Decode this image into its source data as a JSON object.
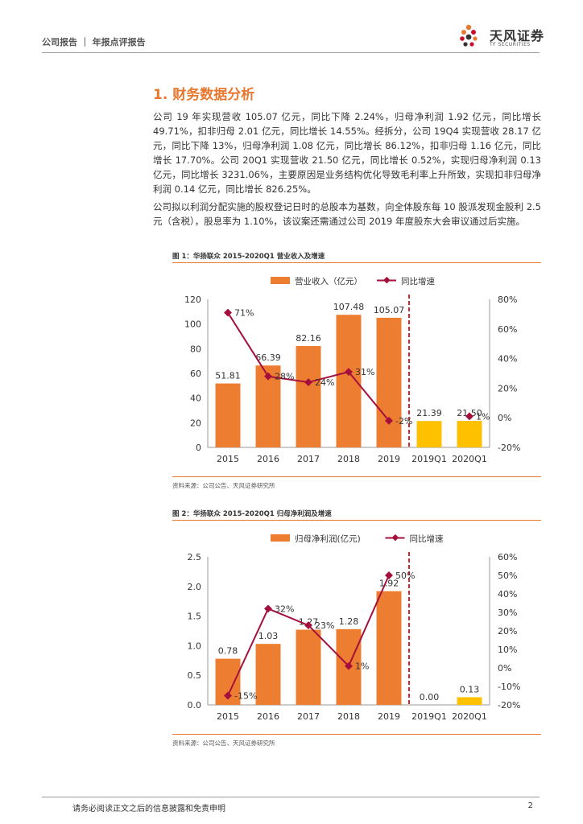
{
  "header": {
    "title": "公司报告 ｜ 年报点评报告"
  },
  "logo": {
    "name": "天风证券",
    "subtitle": "TF SECURITIES"
  },
  "section": {
    "title": "1. 财务数据分析"
  },
  "paragraphs": {
    "p1": "公司 19 年实现营收 105.07 亿元，同比下降 2.24%，归母净利润 1.92 亿元，同比增长 49.71%，扣非归母 2.01 亿元，同比增长 14.55%。经拆分，公司 19Q4 实现营收 28.17 亿元，同比下降 13%，归母净利润 1.08 亿元，同比增长 86.12%，扣非归母 1.16 亿元，同比增长 17.70%。公司 20Q1 实现营收 21.50 亿元，同比增长 0.52%，实现归母净利润 0.13 亿元，同比增长 3231.06%，主要原因是业务结构优化导致毛利率上升所致，实现扣非归母净利润 0.14 亿元，同比增长 826.25%。",
    "p2": "公司拟以利润分配实施的股权登记日时的总股本为基数，向全体股东每 10 股派发现金股利 2.5 元（含税），股息率为 1.10%，该议案还需通过公司 2019 年度股东大会审议通过后实施。"
  },
  "figures": {
    "fig1": {
      "title": "图 1：华扬联众 2015-2020Q1 营业收入及增速",
      "source": "资料来源：公司公告、天风证券研究所"
    },
    "fig2": {
      "title": "图 2：华扬联众 2015-2020Q1 归母净利润及增速",
      "source": "资料来源：公司公告、天风证券研究所"
    }
  },
  "chart_data": [
    {
      "type": "bar",
      "categories": [
        "2015",
        "2016",
        "2017",
        "2018",
        "2019",
        "2019Q1",
        "2020Q1"
      ],
      "series": [
        {
          "name": "营业收入（亿元）",
          "type": "bar",
          "values": [
            51.81,
            66.39,
            82.16,
            107.48,
            105.07,
            21.39,
            21.5
          ],
          "labels": [
            "51.81",
            "66.39",
            "82.16",
            "107.48",
            "105.07",
            "21.39",
            "21.50"
          ]
        },
        {
          "name": "同比增速",
          "type": "line",
          "axis": "right",
          "values": [
            71,
            28,
            24,
            31,
            -2,
            null,
            1
          ],
          "labels": [
            "71%",
            "28%",
            "24%",
            "31%",
            "-2%",
            "",
            "1%"
          ]
        }
      ],
      "ylim": [
        0,
        120
      ],
      "yticks": [
        "0",
        "20",
        "40",
        "60",
        "80",
        "100",
        "120"
      ],
      "y2lim": [
        -20,
        80
      ],
      "y2ticks": [
        "-20%",
        "0%",
        "20%",
        "40%",
        "60%",
        "80%"
      ],
      "legend": "top",
      "colors": {
        "bar": "#ed7d31",
        "bar_quarter": "#ffc000",
        "line": "#a50f3c"
      }
    },
    {
      "type": "bar",
      "categories": [
        "2015",
        "2016",
        "2017",
        "2018",
        "2019",
        "2019Q1",
        "2020Q1"
      ],
      "series": [
        {
          "name": "归母净利润(亿元)",
          "type": "bar",
          "values": [
            0.78,
            1.03,
            1.27,
            1.28,
            1.92,
            0.0,
            0.13
          ],
          "labels": [
            "0.78",
            "1.03",
            "1.27",
            "1.28",
            "1.92",
            "0.00",
            "0.13"
          ]
        },
        {
          "name": "同比增速",
          "type": "line",
          "axis": "right",
          "values": [
            -15,
            32,
            23,
            1,
            50,
            null,
            null
          ],
          "labels": [
            "-15%",
            "32%",
            "23%",
            "1%",
            "50%",
            "",
            ""
          ]
        }
      ],
      "ylim": [
        0,
        2.5
      ],
      "yticks": [
        "0.0",
        "0.5",
        "1.0",
        "1.5",
        "2.0",
        "2.5"
      ],
      "y2lim": [
        -20,
        60
      ],
      "y2ticks": [
        "-20%",
        "-10%",
        "0%",
        "10%",
        "20%",
        "30%",
        "40%",
        "50%",
        "60%"
      ],
      "legend": "top",
      "colors": {
        "bar": "#ed7d31",
        "bar_quarter": "#ffc000",
        "line": "#a50f3c"
      }
    }
  ],
  "footer": {
    "disclaimer": "请务必阅读正文之后的信息披露和免责申明",
    "page": "2"
  }
}
